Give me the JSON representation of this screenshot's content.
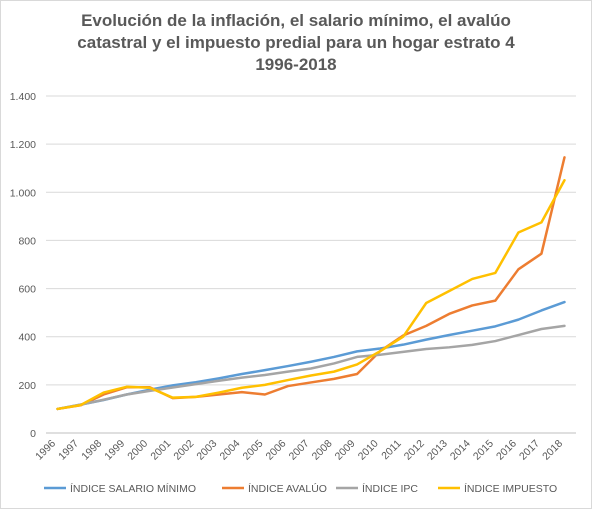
{
  "chart_data": {
    "type": "line",
    "title": "Evolución de la inflación, el salario mínimo, el avalúo catastral y el impuesto predial para un hogar estrato 4 1996-2018",
    "title_lines": [
      "Evolución de la inflación, el salario mínimo, el avalúo",
      "catastral y el impuesto predial para un hogar estrato 4",
      "1996-2018"
    ],
    "x": [
      "1996",
      "1997",
      "1998",
      "1999",
      "2000",
      "2001",
      "2002",
      "2003",
      "2004",
      "2005",
      "2006",
      "2007",
      "2008",
      "2009",
      "2010",
      "2011",
      "2012",
      "2013",
      "2014",
      "2015",
      "2016",
      "2017",
      "2018"
    ],
    "ylim": [
      0,
      1400
    ],
    "yticks": [
      0,
      200,
      400,
      600,
      800,
      1000,
      1200,
      1400
    ],
    "ytick_labels": [
      "0",
      "200",
      "400",
      "600",
      "800",
      "1.000",
      "1.200",
      "1.400"
    ],
    "grid": true,
    "legend": "bottom",
    "series": [
      {
        "name": "ÍNDICE SALARIO MÍNIMO",
        "color": "#5b9bd5",
        "values": [
          100,
          118,
          137,
          160,
          180,
          198,
          211,
          227,
          245,
          261,
          278,
          296,
          316,
          339,
          351,
          367,
          388,
          407,
          425,
          443,
          471,
          509,
          544
        ]
      },
      {
        "name": "ÍNDICE AVALÚO",
        "color": "#ed7d31",
        "values": [
          100,
          115,
          160,
          190,
          190,
          145,
          150,
          160,
          170,
          160,
          195,
          210,
          225,
          245,
          340,
          405,
          445,
          495,
          530,
          550,
          680,
          745,
          1145
        ]
      },
      {
        "name": "ÍNDICE IPC",
        "color": "#a5a5a5",
        "values": [
          100,
          118,
          138,
          160,
          175,
          189,
          203,
          217,
          230,
          241,
          255,
          268,
          289,
          316,
          325,
          337,
          349,
          356,
          366,
          382,
          407,
          432,
          445
        ]
      },
      {
        "name": "ÍNDICE IMPUESTO",
        "color": "#ffc000",
        "values": [
          100,
          116,
          168,
          192,
          188,
          147,
          150,
          168,
          188,
          200,
          220,
          239,
          255,
          285,
          340,
          400,
          540,
          590,
          640,
          665,
          833,
          875,
          1050
        ]
      }
    ]
  }
}
